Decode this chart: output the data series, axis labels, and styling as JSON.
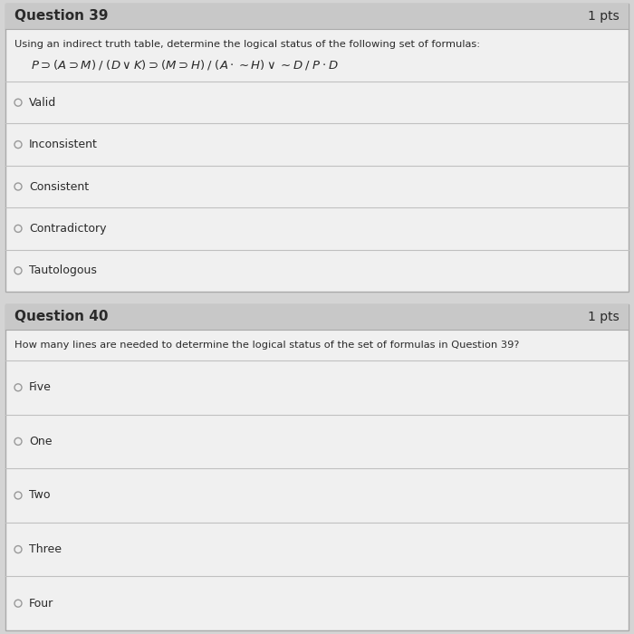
{
  "bg_color": "#d4d4d4",
  "card_bg": "#f0f0f0",
  "header_bg": "#c8c8c8",
  "border_color": "#aaaaaa",
  "divider_color": "#c0c0c0",
  "text_color": "#2a2a2a",
  "radio_color": "#999999",
  "q39_header": "Question 39",
  "q39_pts": "1 pts",
  "q39_instruction": "Using an indirect truth table, determine the logical status of the following set of formulas:",
  "q39_formula": "$P \\supset (A \\supset M)\\;/\\;(D \\vee K) \\supset (M \\supset H)\\;/\\;(A \\cdot {\\sim} H) \\vee {\\sim} D\\;/\\;P \\cdot D$",
  "q39_options": [
    "Valid",
    "Inconsistent",
    "Consistent",
    "Contradictory",
    "Tautologous"
  ],
  "q40_header": "Question 40",
  "q40_pts": "1 pts",
  "q40_instruction": "How many lines are needed to determine the logical status of the set of formulas in Question 39?",
  "q40_options": [
    "Five",
    "One",
    "Two",
    "Three",
    "Four"
  ],
  "fig_width": 7.0,
  "fig_height": 7.0,
  "dpi": 100
}
